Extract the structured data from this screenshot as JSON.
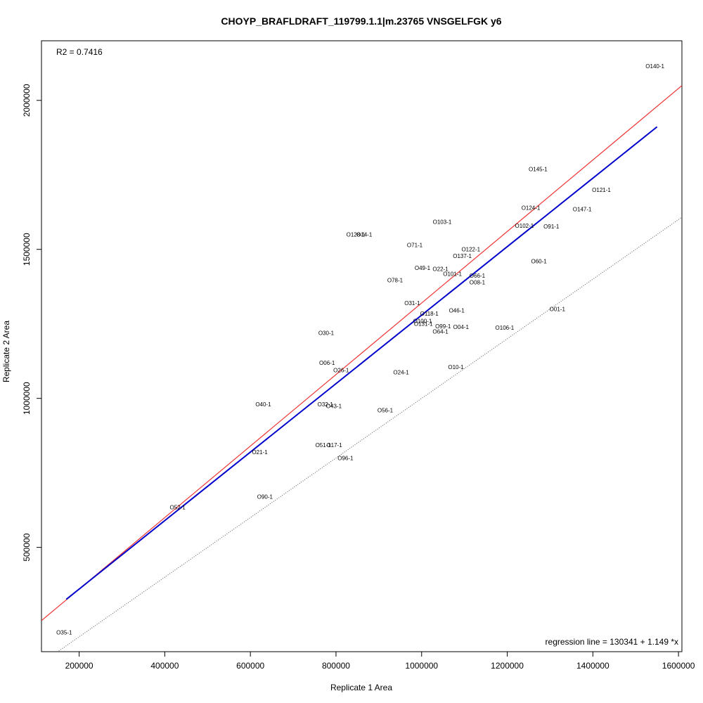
{
  "chart_data": {
    "type": "scatter",
    "title": "CHOYP_BRAFLDRAFT_119799.1.1|m.23765 VNSGELFGK y6",
    "xlabel": "Replicate 1 Area",
    "ylabel": "Replicate 2 Area",
    "xlim": [
      112000,
      1608000
    ],
    "ylim": [
      150000,
      2200000
    ],
    "xticks": [
      200000,
      400000,
      600000,
      800000,
      1000000,
      1200000,
      1400000,
      1600000
    ],
    "yticks": [
      500000,
      1000000,
      1500000,
      2000000
    ],
    "xtick_labels": [
      "200000",
      "400000",
      "600000",
      "800000",
      "1000000",
      "1200000",
      "1400000",
      "1600000"
    ],
    "ytick_labels": [
      "500000",
      "1000000",
      "1500000",
      "2000000"
    ],
    "r2_text": "R2 = 0.7416",
    "regression_text": "regression line = 130341 + 1.149 *x",
    "regression": {
      "intercept": 130341,
      "slope": 1.149,
      "x_range": [
        170000,
        1550000
      ],
      "color": "#0000cc"
    },
    "reference_red": {
      "intercept": 120000,
      "slope": 1.2,
      "color": "#ee3333"
    },
    "identity_line": {
      "intercept": 0,
      "slope": 1,
      "color": "#555555"
    },
    "points": [
      {
        "label": "O140-1",
        "x": 1545000,
        "y": 2115000
      },
      {
        "label": "O145-1",
        "x": 1272000,
        "y": 1770000
      },
      {
        "label": "O121-1",
        "x": 1420000,
        "y": 1700000
      },
      {
        "label": "O124-1",
        "x": 1255000,
        "y": 1640000
      },
      {
        "label": "O147-1",
        "x": 1375000,
        "y": 1635000
      },
      {
        "label": "O103-1",
        "x": 1048000,
        "y": 1592000
      },
      {
        "label": "O102-1",
        "x": 1240000,
        "y": 1580000
      },
      {
        "label": "O91-1",
        "x": 1303000,
        "y": 1577000
      },
      {
        "label": "O128-1",
        "x": 846000,
        "y": 1550000
      },
      {
        "label": "O14-1",
        "x": 866000,
        "y": 1550000
      },
      {
        "label": "O71-1",
        "x": 984000,
        "y": 1515000
      },
      {
        "label": "O122-1",
        "x": 1115000,
        "y": 1500000
      },
      {
        "label": "O137-1",
        "x": 1095000,
        "y": 1478000
      },
      {
        "label": "O60-1",
        "x": 1274000,
        "y": 1460000
      },
      {
        "label": "O49-1",
        "x": 1002000,
        "y": 1438000
      },
      {
        "label": "O22-1",
        "x": 1044000,
        "y": 1435000
      },
      {
        "label": "O101-1",
        "x": 1072000,
        "y": 1418000
      },
      {
        "label": "O66-1",
        "x": 1130000,
        "y": 1412000
      },
      {
        "label": "O78-1",
        "x": 938000,
        "y": 1397000
      },
      {
        "label": "O08-1",
        "x": 1130000,
        "y": 1390000
      },
      {
        "label": "O31-1",
        "x": 978000,
        "y": 1320000
      },
      {
        "label": "O01-1",
        "x": 1317000,
        "y": 1300000
      },
      {
        "label": "O46-1",
        "x": 1082000,
        "y": 1295000
      },
      {
        "label": "O118-1",
        "x": 1018000,
        "y": 1285000
      },
      {
        "label": "O100-1",
        "x": 1002000,
        "y": 1260000
      },
      {
        "label": "O131-1",
        "x": 1004000,
        "y": 1250000
      },
      {
        "label": "O99-1",
        "x": 1050000,
        "y": 1242000
      },
      {
        "label": "O04-1",
        "x": 1092000,
        "y": 1240000
      },
      {
        "label": "O106-1",
        "x": 1194000,
        "y": 1238000
      },
      {
        "label": "O64-1",
        "x": 1044000,
        "y": 1225000
      },
      {
        "label": "O30-1",
        "x": 777000,
        "y": 1220000
      },
      {
        "label": "O06-1",
        "x": 779000,
        "y": 1120000
      },
      {
        "label": "O10-1",
        "x": 1080000,
        "y": 1105000
      },
      {
        "label": "O26-1",
        "x": 812000,
        "y": 1095000
      },
      {
        "label": "O24-1",
        "x": 952000,
        "y": 1088000
      },
      {
        "label": "O40-1",
        "x": 630000,
        "y": 980000
      },
      {
        "label": "O32-1",
        "x": 775000,
        "y": 980000
      },
      {
        "label": "O43-1",
        "x": 795000,
        "y": 975000
      },
      {
        "label": "O56-1",
        "x": 915000,
        "y": 960000
      },
      {
        "label": "O51-1",
        "x": 770000,
        "y": 843000
      },
      {
        "label": "O17-1",
        "x": 796000,
        "y": 843000
      },
      {
        "label": "O21-1",
        "x": 622000,
        "y": 820000
      },
      {
        "label": "O96-1",
        "x": 822000,
        "y": 800000
      },
      {
        "label": "O90-1",
        "x": 634000,
        "y": 670000
      },
      {
        "label": "O52-1",
        "x": 430000,
        "y": 635000
      },
      {
        "label": "O35-1",
        "x": 165000,
        "y": 215000
      }
    ]
  }
}
